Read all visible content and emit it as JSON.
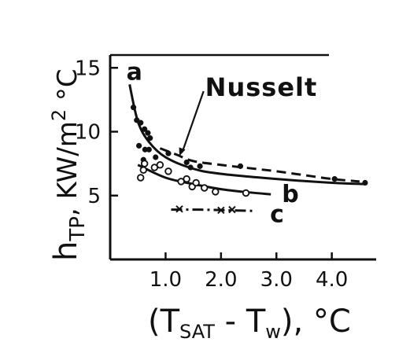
{
  "chart_data": {
    "type": "scatter",
    "xlabel": "(T_SAT - T_w), °C",
    "ylabel": "h_TP, KW/m² °C",
    "xlim": [
      0,
      4.8
    ],
    "ylim": [
      0,
      16
    ],
    "x_ticks": [
      {
        "value": 1.0,
        "label": "1.0"
      },
      {
        "value": 2.0,
        "label": "2.0"
      },
      {
        "value": 3.0,
        "label": "3.0"
      },
      {
        "value": 4.0,
        "label": "4.0"
      }
    ],
    "y_ticks": [
      {
        "value": 5,
        "label": "5"
      },
      {
        "value": 10,
        "label": "10"
      },
      {
        "value": 15,
        "label": "15"
      }
    ],
    "curves": [
      {
        "label": "a",
        "style": "solid",
        "x": [
          0.35,
          0.5,
          0.7,
          1.0,
          1.5,
          2.0,
          3.0,
          4.0,
          4.6
        ],
        "y": [
          13.7,
          10.8,
          9.2,
          8.0,
          7.1,
          6.7,
          6.3,
          6.0,
          5.9
        ]
      },
      {
        "label": "b",
        "style": "solid",
        "x": [
          0.5,
          1.0,
          1.5,
          2.0,
          2.5,
          2.9
        ],
        "y": [
          7.4,
          6.4,
          5.9,
          5.5,
          5.25,
          5.1
        ]
      },
      {
        "label": "c",
        "style": "dashdot",
        "x": [
          1.1,
          1.6,
          2.1,
          2.6
        ],
        "y": [
          3.9,
          3.9,
          3.85,
          3.8
        ]
      },
      {
        "label": "Nusselt",
        "style": "dashed",
        "x": [
          0.9,
          1.2,
          1.5,
          2.0,
          2.5,
          3.0,
          3.5,
          4.0,
          4.5
        ],
        "y": [
          8.7,
          8.2,
          7.7,
          7.4,
          7.15,
          6.9,
          6.6,
          6.3,
          6.1
        ]
      }
    ],
    "points": [
      {
        "series": "filled",
        "marker": "filled-circle",
        "x": [
          0.42,
          0.48,
          0.55,
          0.62,
          0.68,
          0.72,
          0.52,
          0.63,
          0.6,
          0.7,
          0.82,
          1.05,
          1.38,
          1.45,
          1.62,
          2.35,
          4.05,
          4.6
        ],
        "y": [
          11.9,
          10.9,
          10.7,
          10.2,
          9.9,
          9.5,
          8.9,
          8.6,
          7.8,
          8.6,
          8.0,
          8.3,
          7.6,
          7.2,
          7.3,
          7.3,
          6.3,
          6.0
        ]
      },
      {
        "series": "open",
        "marker": "open-circle",
        "x": [
          0.55,
          0.6,
          0.62,
          0.8,
          0.9,
          1.05,
          1.28,
          1.38,
          1.48,
          1.55,
          1.7,
          1.9,
          2.45
        ],
        "y": [
          6.4,
          7.0,
          7.5,
          7.2,
          7.4,
          6.9,
          6.1,
          6.3,
          5.7,
          6.0,
          5.6,
          5.3,
          5.2
        ]
      },
      {
        "series": "crosses",
        "marker": "cross",
        "x": [
          1.25,
          2.0,
          2.2
        ],
        "y": [
          3.95,
          3.85,
          3.9
        ]
      }
    ],
    "annotations": [
      {
        "text": "Nusselt",
        "arrow_to": [
          1.25,
          8.1
        ]
      }
    ]
  }
}
